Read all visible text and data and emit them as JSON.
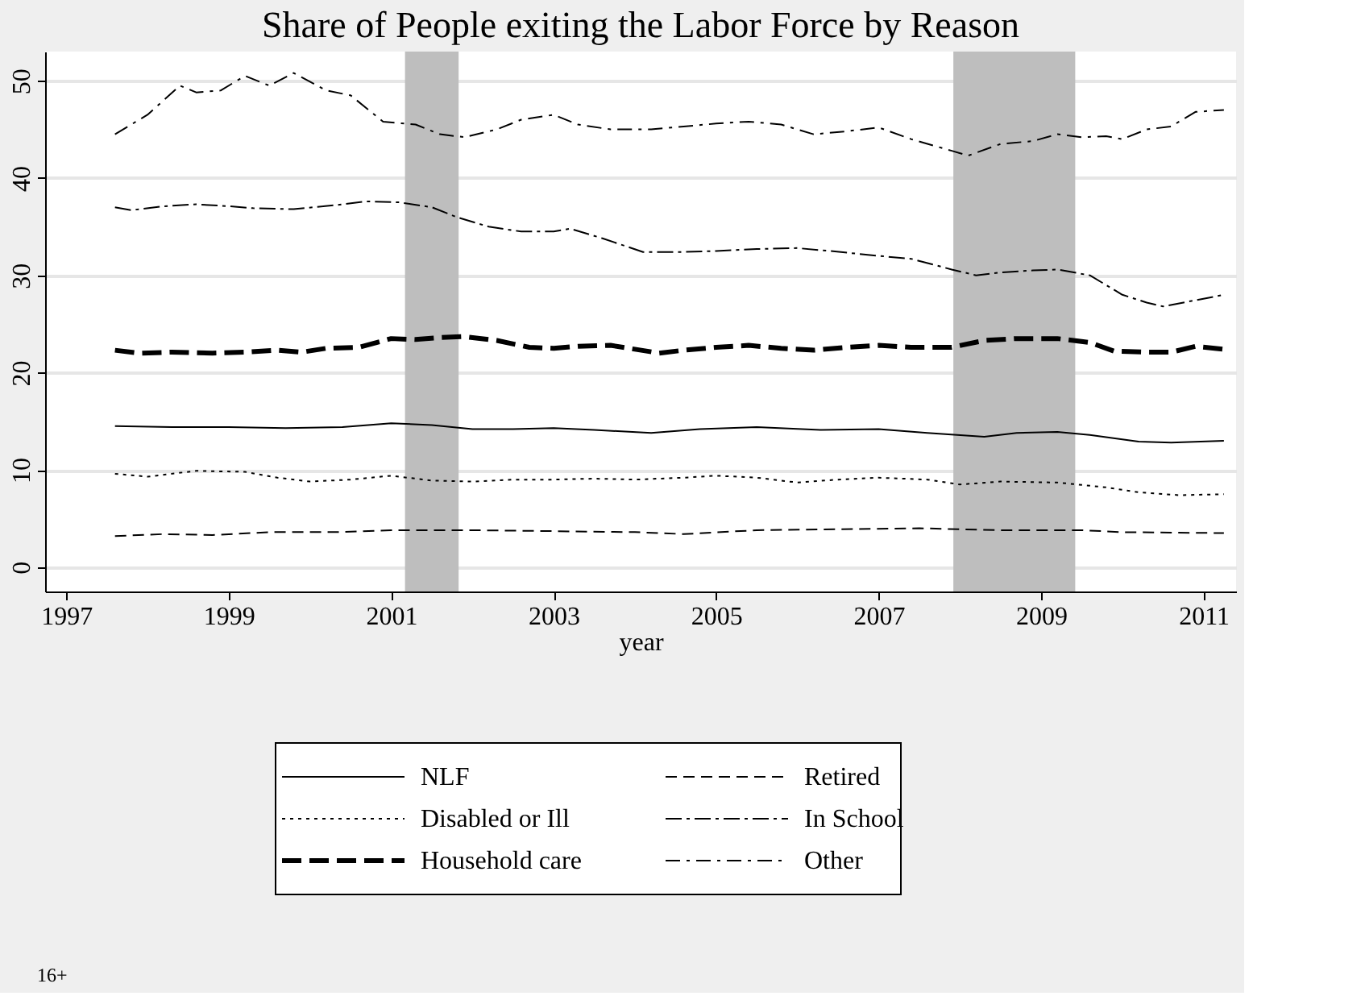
{
  "chart_data": {
    "type": "line",
    "title": "Share of People exiting the Labor Force by Reason",
    "xlabel": "year",
    "xlim": [
      1996.74,
      2011.4
    ],
    "xticks": [
      1997,
      1999,
      2001,
      2003,
      2005,
      2007,
      2009,
      2011
    ],
    "ylim": [
      -2.5,
      53
    ],
    "yticks": [
      0,
      10,
      20,
      30,
      40,
      50
    ],
    "grid": "y",
    "legend": "bottom",
    "bands": [
      {
        "axis": "x",
        "from": 2001.17,
        "to": 2001.83,
        "label": null,
        "color": "#bebebe"
      },
      {
        "axis": "x",
        "from": 2007.92,
        "to": 2009.42,
        "label": null,
        "color": "#bebebe"
      }
    ],
    "annotations": [
      "16+"
    ],
    "series": [
      {
        "name": "NLF",
        "color": "#000000",
        "line_style": "solid",
        "x": [
          1997.6,
          1998.3,
          1999.0,
          1999.7,
          2000.4,
          2001.0,
          2001.5,
          2002.0,
          2002.5,
          2003.0,
          2003.5,
          2004.2,
          2004.8,
          2005.5,
          2006.3,
          2007.0,
          2007.6,
          2008.3,
          2008.7,
          2009.2,
          2009.6,
          2010.2,
          2010.6,
          2011.25
        ],
        "values": [
          14.5,
          14.4,
          14.4,
          14.3,
          14.4,
          14.8,
          14.6,
          14.2,
          14.2,
          14.3,
          14.1,
          13.8,
          14.2,
          14.4,
          14.1,
          14.2,
          13.8,
          13.4,
          13.8,
          13.9,
          13.6,
          12.9,
          12.8,
          13.0
        ]
      },
      {
        "name": "Retired",
        "color": "#000000",
        "line_style": "dashed",
        "x": [
          1997.6,
          1998.2,
          1998.8,
          1999.5,
          2000.3,
          2001.0,
          2002.0,
          2003.0,
          2004.0,
          2004.6,
          2005.5,
          2006.5,
          2007.5,
          2008.5,
          2009.5,
          2010.0,
          2011.25
        ],
        "values": [
          3.2,
          3.4,
          3.3,
          3.6,
          3.6,
          3.8,
          3.8,
          3.7,
          3.6,
          3.4,
          3.8,
          3.9,
          4.0,
          3.8,
          3.8,
          3.6,
          3.5
        ]
      },
      {
        "name": "Disabled or Ill",
        "color": "#000000",
        "line_style": "dotted",
        "x": [
          1997.6,
          1998.0,
          1998.6,
          1999.2,
          1999.6,
          2000.0,
          2000.5,
          2001.0,
          2001.5,
          2002.0,
          2002.5,
          2003.0,
          2003.5,
          2004.0,
          2004.6,
          2005.0,
          2005.5,
          2006.0,
          2006.5,
          2007.0,
          2007.6,
          2008.0,
          2008.5,
          2009.2,
          2009.8,
          2010.2,
          2010.7,
          2011.25
        ],
        "values": [
          9.6,
          9.3,
          9.9,
          9.8,
          9.2,
          8.8,
          9.0,
          9.4,
          8.9,
          8.8,
          9.0,
          9.0,
          9.1,
          9.0,
          9.2,
          9.4,
          9.2,
          8.7,
          9.0,
          9.2,
          9.0,
          8.5,
          8.8,
          8.7,
          8.2,
          7.7,
          7.4,
          7.5
        ]
      },
      {
        "name": "In School",
        "color": "#000000",
        "line_style": "longdashdot",
        "x": [
          1997.6,
          1997.8,
          1998.2,
          1998.6,
          1999.0,
          1999.3,
          1999.8,
          2000.3,
          2000.7,
          2001.1,
          2001.5,
          2001.8,
          2002.2,
          2002.6,
          2003.0,
          2003.2,
          2003.6,
          2004.1,
          2004.6,
          2005.0,
          2005.5,
          2006.0,
          2006.4,
          2007.0,
          2007.4,
          2007.9,
          2008.2,
          2008.5,
          2008.9,
          2009.2,
          2009.6,
          2010.0,
          2010.3,
          2010.5,
          2011.25
        ],
        "values": [
          37.0,
          36.7,
          37.1,
          37.3,
          37.1,
          36.9,
          36.8,
          37.2,
          37.6,
          37.5,
          37.0,
          36.0,
          35.0,
          34.5,
          34.5,
          34.8,
          33.8,
          32.4,
          32.4,
          32.5,
          32.7,
          32.8,
          32.5,
          32.0,
          31.7,
          30.6,
          30.0,
          30.3,
          30.5,
          30.6,
          30.0,
          28.0,
          27.2,
          26.8,
          28.0
        ]
      },
      {
        "name": "Household care",
        "color": "#000000",
        "line_style": "longdash",
        "x": [
          1997.6,
          1997.9,
          1998.3,
          1998.8,
          1999.2,
          1999.6,
          1999.9,
          2000.2,
          2000.6,
          2001.0,
          2001.3,
          2001.6,
          2001.9,
          2002.3,
          2002.7,
          2003.0,
          2003.3,
          2003.7,
          2004.0,
          2004.3,
          2004.6,
          2005.0,
          2005.4,
          2005.8,
          2006.2,
          2006.6,
          2007.0,
          2007.4,
          2007.9,
          2008.3,
          2008.7,
          2009.2,
          2009.6,
          2009.9,
          2010.3,
          2010.6,
          2010.9,
          2011.25
        ],
        "values": [
          22.3,
          22.0,
          22.1,
          22.0,
          22.1,
          22.3,
          22.1,
          22.5,
          22.6,
          23.5,
          23.4,
          23.6,
          23.7,
          23.3,
          22.6,
          22.5,
          22.7,
          22.8,
          22.4,
          22.0,
          22.3,
          22.6,
          22.8,
          22.5,
          22.3,
          22.6,
          22.8,
          22.6,
          22.6,
          23.3,
          23.5,
          23.5,
          23.1,
          22.2,
          22.1,
          22.1,
          22.7,
          22.4
        ]
      },
      {
        "name": "Other",
        "color": "#000000",
        "line_style": "dashdot",
        "x": [
          1997.6,
          1998.0,
          1998.4,
          1998.6,
          1998.9,
          1999.2,
          1999.5,
          1999.8,
          2000.2,
          2000.5,
          2000.9,
          2001.3,
          2001.6,
          2001.9,
          2002.3,
          2002.6,
          2003.0,
          2003.3,
          2003.7,
          2004.2,
          2004.6,
          2005.0,
          2005.4,
          2005.8,
          2006.2,
          2006.6,
          2007.0,
          2007.4,
          2007.9,
          2008.1,
          2008.5,
          2008.9,
          2009.2,
          2009.5,
          2009.8,
          2010.0,
          2010.3,
          2010.6,
          2010.9,
          2011.25
        ],
        "values": [
          44.5,
          46.5,
          49.5,
          48.8,
          49.0,
          50.5,
          49.5,
          50.8,
          49.0,
          48.5,
          45.8,
          45.5,
          44.5,
          44.2,
          45.0,
          46.0,
          46.5,
          45.5,
          45.0,
          45.0,
          45.3,
          45.6,
          45.8,
          45.5,
          44.5,
          44.8,
          45.2,
          44.0,
          42.8,
          42.3,
          43.5,
          43.8,
          44.5,
          44.2,
          44.3,
          44.0,
          45.0,
          45.3,
          46.8,
          47.0
        ]
      }
    ]
  }
}
